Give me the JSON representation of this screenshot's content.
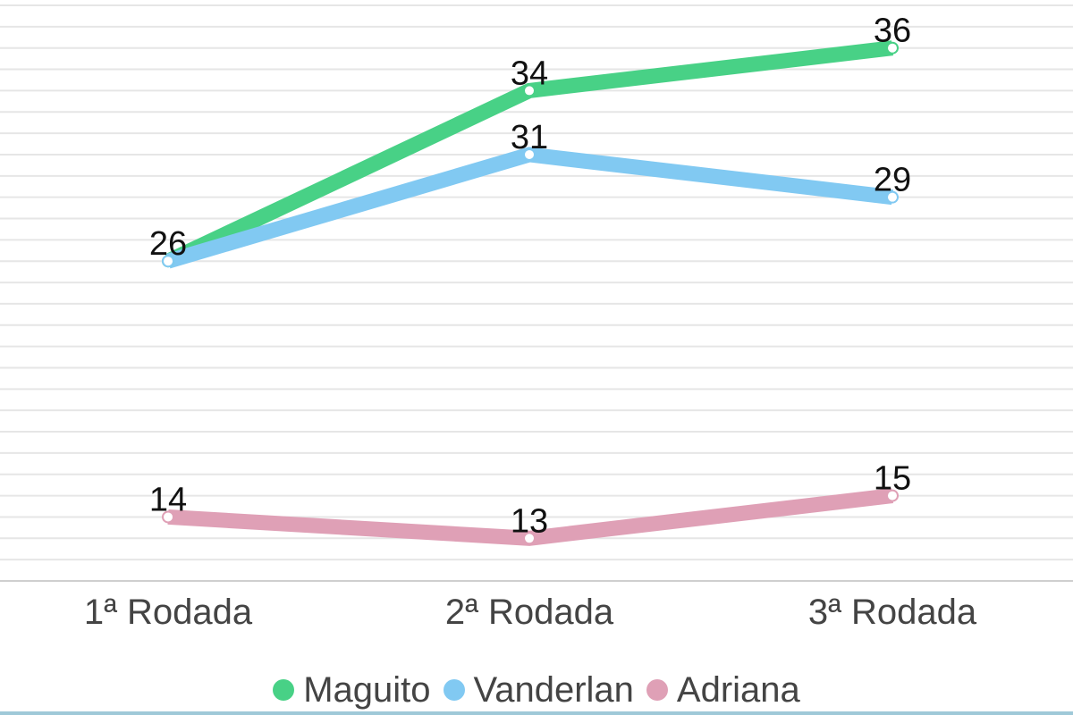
{
  "chart_data": {
    "type": "line",
    "categories": [
      "1ª Rodada",
      "2ª Rodada",
      "3ª Rodada"
    ],
    "series": [
      {
        "name": "Maguito",
        "color": "#48d186",
        "values": [
          26,
          34,
          36
        ]
      },
      {
        "name": "Vanderlan",
        "color": "#81c9f2",
        "values": [
          26,
          31,
          29
        ]
      },
      {
        "name": "Adriana",
        "color": "#dfa0b6",
        "values": [
          14,
          13,
          15
        ]
      }
    ],
    "data_labels": [
      {
        "series": 0,
        "index": 0,
        "text": "26"
      },
      {
        "series": 0,
        "index": 1,
        "text": "34"
      },
      {
        "series": 0,
        "index": 2,
        "text": "36"
      },
      {
        "series": 1,
        "index": 1,
        "text": "31"
      },
      {
        "series": 1,
        "index": 2,
        "text": "29"
      },
      {
        "series": 2,
        "index": 0,
        "text": "14"
      },
      {
        "series": 2,
        "index": 1,
        "text": "13"
      },
      {
        "series": 2,
        "index": 2,
        "text": "15"
      }
    ],
    "ylim": [
      11,
      38
    ],
    "grid": true,
    "legend_position": "bottom",
    "title": "",
    "xlabel": "",
    "ylabel": ""
  }
}
